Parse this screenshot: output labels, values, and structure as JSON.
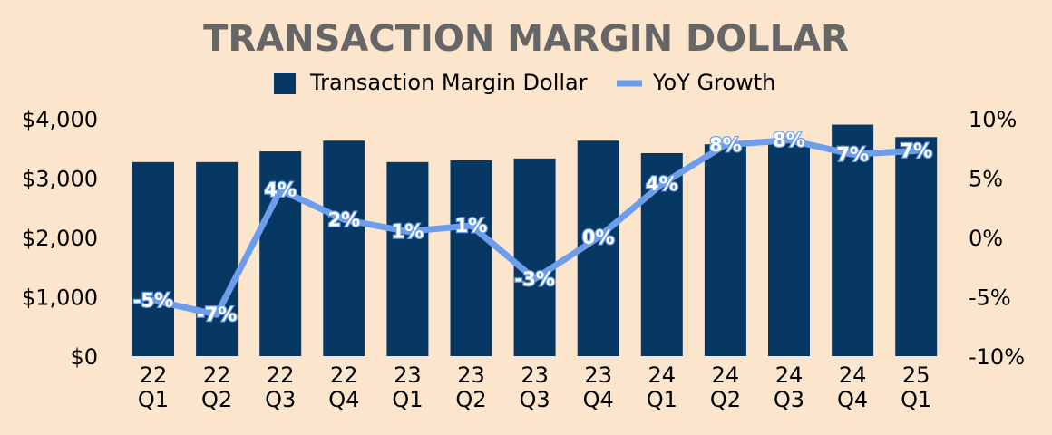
{
  "chart_data": {
    "type": "bar",
    "title": "TRANSACTION MARGIN DOLLAR",
    "categories": [
      [
        "22",
        "Q1"
      ],
      [
        "22",
        "Q2"
      ],
      [
        "22",
        "Q3"
      ],
      [
        "22",
        "Q4"
      ],
      [
        "23",
        "Q1"
      ],
      [
        "23",
        "Q2"
      ],
      [
        "23",
        "Q3"
      ],
      [
        "23",
        "Q4"
      ],
      [
        "24",
        "Q1"
      ],
      [
        "24",
        "Q2"
      ],
      [
        "24",
        "Q3"
      ],
      [
        "24",
        "Q4"
      ],
      [
        "25",
        "Q1"
      ]
    ],
    "series": [
      {
        "name": "Transaction Margin Dollar",
        "type": "bar",
        "axis": "left",
        "color": "#073763",
        "values": [
          3270,
          3270,
          3450,
          3630,
          3270,
          3300,
          3330,
          3630,
          3420,
          3570,
          3600,
          3900,
          3690
        ]
      },
      {
        "name": "YoY Growth",
        "type": "line",
        "axis": "right",
        "color": "#6d9eeb",
        "values": [
          -5.3,
          -6.5,
          4.0,
          1.5,
          0.5,
          1.0,
          -3.5,
          0.0,
          4.5,
          7.8,
          8.2,
          7.0,
          7.3
        ],
        "labels": [
          "-5%",
          "-7%",
          "4%",
          "2%",
          "1%",
          "1%",
          "-3%",
          "0%",
          "4%",
          "8%",
          "8%",
          "7%",
          "7%"
        ]
      }
    ],
    "y_left": {
      "ylim": [
        0,
        4000
      ],
      "ticks": [
        0,
        1000,
        2000,
        3000,
        4000
      ],
      "tick_labels": [
        "$0",
        "$1,000",
        "$2,000",
        "$3,000",
        "$4,000"
      ]
    },
    "y_right": {
      "ylim": [
        -10,
        10
      ],
      "ticks": [
        -10,
        -5,
        0,
        5,
        10
      ],
      "tick_labels": [
        "-10%",
        "-5%",
        "0%",
        "5%",
        "10%"
      ]
    },
    "legend": {
      "position": "top-center",
      "entries": [
        "Transaction Margin Dollar",
        "YoY Growth"
      ]
    },
    "grid": false
  }
}
